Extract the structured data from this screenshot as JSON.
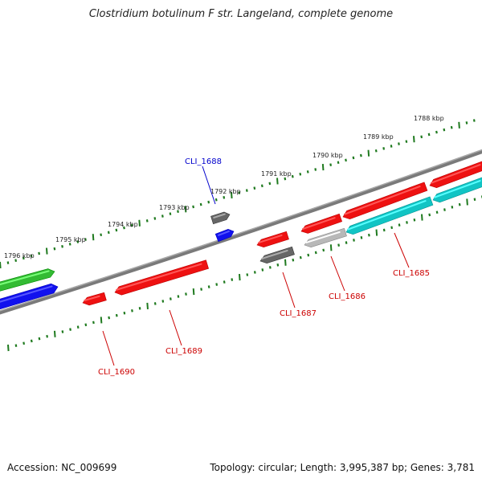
{
  "title": "Clostridium botulinum F str. Langeland, complete genome",
  "footer": {
    "accession": "Accession: NC_009699",
    "summary": "Topology: circular; Length: 3,995,387 bp; Genes: 3,781"
  },
  "colors": {
    "backbone": "#7a7a7a",
    "tick": "#1f7a1f",
    "tick_label": "#222222",
    "label_forward": "#0000cc",
    "label_reverse": "#cc0000",
    "gene_red": "#ee1111",
    "gene_blue": "#1111ee",
    "gene_green": "#33bb33",
    "gene_gray": "#666666",
    "gene_lightgray": "#b8b8b8",
    "gene_cyan": "#11c4c4"
  },
  "scale_labels": [
    "1796 kbp",
    "1795 kbp",
    "1794 kbp",
    "1793 kbp",
    "1792 kbp",
    "1791 kbp",
    "1790 kbp",
    "1789 kbp",
    "1788 kbp"
  ],
  "gene_labels": [
    {
      "text": "CLI_1688",
      "strand": "forward"
    },
    {
      "text": "CLI_1685",
      "strand": "reverse"
    },
    {
      "text": "CLI_1686",
      "strand": "reverse"
    },
    {
      "text": "CLI_1687",
      "strand": "reverse"
    },
    {
      "text": "CLI_1689",
      "strand": "reverse"
    },
    {
      "text": "CLI_1690",
      "strand": "reverse"
    }
  ]
}
